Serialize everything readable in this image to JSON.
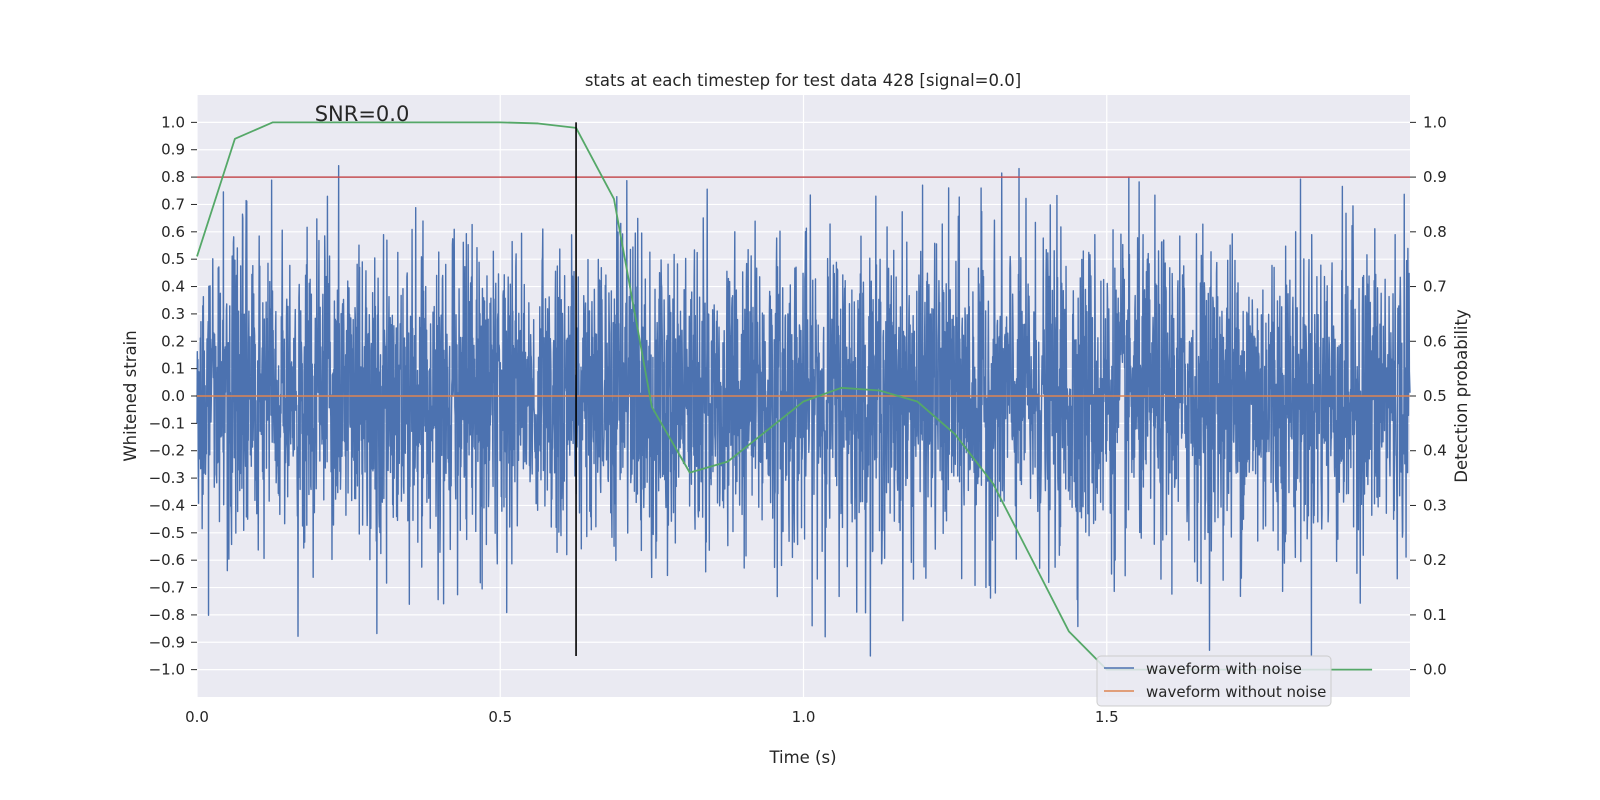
{
  "chart_data": {
    "type": "line",
    "title": "stats at each timestep for test data 428 [signal=0.0]",
    "xlabel": "Time (s)",
    "ylabel": "Whitened strain",
    "y2label": "Detection probability",
    "annotation": "SNR=0.0",
    "xlim": [
      0.0,
      2.0
    ],
    "ylim": [
      -1.1,
      1.1
    ],
    "y2lim": [
      -0.05,
      1.05
    ],
    "x_ticks": [
      "0.0",
      "0.5",
      "1.0",
      "1.5"
    ],
    "y_ticks": [
      "1.0",
      "0.9",
      "0.8",
      "0.7",
      "0.6",
      "0.5",
      "0.4",
      "0.3",
      "0.2",
      "0.1",
      "0.0",
      "−0.1",
      "−0.2",
      "−0.3",
      "−0.4",
      "−0.5",
      "−0.6",
      "−0.7",
      "−0.8",
      "−0.9",
      "−1.0"
    ],
    "y2_ticks": [
      "1.0",
      "0.9",
      "0.8",
      "0.7",
      "0.6",
      "0.5",
      "0.4",
      "0.3",
      "0.2",
      "0.1",
      "0.0"
    ],
    "grid": true,
    "legend_position": "lower-right",
    "colors": {
      "noise": "#4c72b0",
      "clean": "#dd8452",
      "prob": "#55a868",
      "threshold": "#c44e52",
      "marker": "#000000",
      "plot_bg": "#eaeaf2"
    },
    "series": [
      {
        "name": "waveform with noise",
        "axis": "left",
        "note": "noise trace, values within [-0.95, 1.0]",
        "sample_rate_hz": 2048,
        "value_range": [
          -0.95,
          1.0
        ]
      },
      {
        "name": "waveform without noise",
        "axis": "left",
        "x": [
          0.0,
          2.0
        ],
        "y": [
          0.0,
          0.0
        ]
      },
      {
        "axis": "right",
        "x": [
          0.0,
          0.0625,
          0.125,
          0.5,
          0.5625,
          0.625,
          0.6875,
          0.75,
          0.8125,
          0.875,
          1.0,
          1.0625,
          1.125,
          1.1875,
          1.25,
          1.3125,
          1.4375,
          1.5,
          1.9375
        ],
        "y": [
          0.755,
          0.97,
          1.0,
          1.0,
          0.998,
          0.99,
          0.86,
          0.48,
          0.36,
          0.38,
          0.49,
          0.515,
          0.51,
          0.49,
          0.43,
          0.34,
          0.07,
          0.0,
          0.0
        ]
      }
    ],
    "threshold_line": {
      "axis": "right",
      "y": 0.9
    },
    "marker_line": {
      "x": 0.625,
      "y_range": [
        -0.95,
        1.0
      ]
    }
  }
}
